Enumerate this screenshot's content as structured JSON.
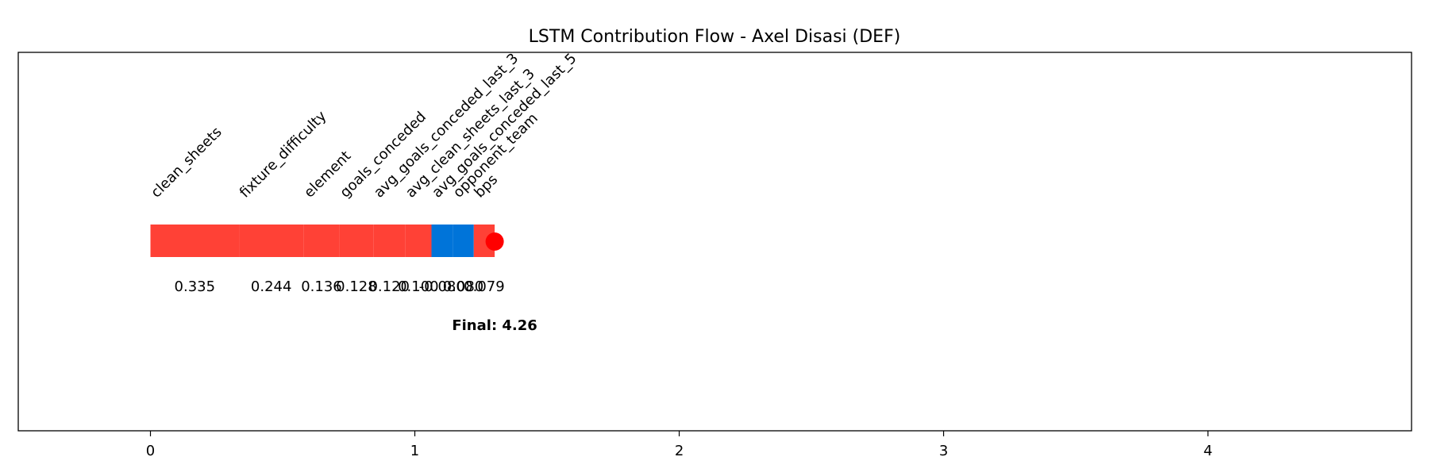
{
  "chart_data": {
    "type": "bar",
    "orientation": "horizontal-cumulative",
    "title": "LSTM Contribution Flow - Axel Disasi (DEF)",
    "xlabel": "",
    "ylabel": "",
    "xlim": [
      -0.5,
      4.77
    ],
    "xticks": [
      "0",
      "1",
      "2",
      "3",
      "4"
    ],
    "grid": false,
    "segments": [
      {
        "feature": "clean_sheets",
        "value": 0.335,
        "label": "0.335",
        "color": "#ff4136"
      },
      {
        "feature": "fixture_difficulty",
        "value": 0.244,
        "label": "0.244",
        "color": "#ff4136"
      },
      {
        "feature": "element",
        "value": 0.136,
        "label": "0.136",
        "color": "#ff4136"
      },
      {
        "feature": "goals_conceded",
        "value": 0.128,
        "label": "0.128",
        "color": "#ff4136"
      },
      {
        "feature": "avg_goals_conceded_last_3",
        "value": 0.12,
        "label": "0.120",
        "color": "#ff4136"
      },
      {
        "feature": "avg_clean_sheets_last_3",
        "value": 0.1,
        "label": "0.100",
        "color": "#ff4136"
      },
      {
        "feature": "avg_goals_conceded_last_5",
        "value": -0.08,
        "label": "-0.080",
        "color": "#0074d9"
      },
      {
        "feature": "opponent_team",
        "value": 0.08,
        "label": "0.080",
        "color": "#0074d9"
      },
      {
        "feature": "bps",
        "value": 0.079,
        "label": "0.079",
        "color": "#ff4136"
      }
    ],
    "final_label": "Final: 4.26",
    "final_marker_color": "#ff0000"
  }
}
